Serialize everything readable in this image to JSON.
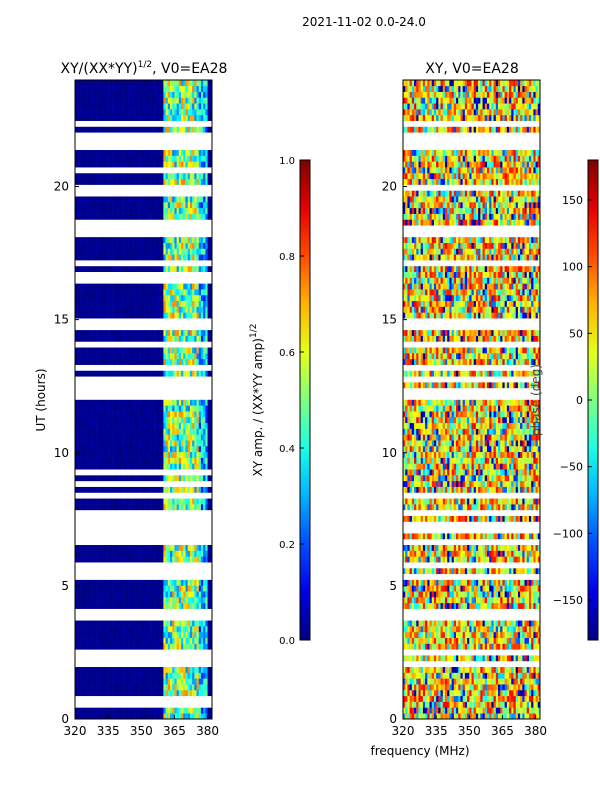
{
  "figure": {
    "suptitle": "2021-11-02 0.0-24.0"
  },
  "chart_data": [
    {
      "type": "heatmap",
      "title": "XY/(XX*YY)",
      "title_sup": "1/2",
      "title_suffix": ", V0=EA28",
      "xlabel": "",
      "ylabel": "UT (hours)",
      "xlim": [
        320,
        382
      ],
      "ylim": [
        0,
        24
      ],
      "xticks": [
        320,
        335,
        350,
        365,
        380
      ],
      "yticks": [
        0,
        5,
        10,
        15,
        20
      ],
      "colorbar": {
        "label": "XY amp. / (XX*YY amp)",
        "label_sup": "1/2",
        "range": [
          0.0,
          1.0
        ],
        "ticks": [
          "0.0",
          "0.2",
          "0.4",
          "0.6",
          "0.8",
          "1.0"
        ],
        "colormap": "jet"
      },
      "description_values": {
        "background_amplitude": 0.0,
        "band_range_mhz": [
          360,
          376
        ],
        "band_amplitude_range": [
          0.25,
          0.75
        ]
      }
    },
    {
      "type": "heatmap",
      "title": "XY, V0=EA28",
      "xlabel": "frequency (MHz)",
      "ylabel": "",
      "xlim": [
        320,
        382
      ],
      "ylim": [
        0,
        24
      ],
      "xticks": [
        320,
        335,
        350,
        365,
        380
      ],
      "yticks": [
        0,
        5,
        10,
        15,
        20
      ],
      "colorbar": {
        "label": "phase (deg)",
        "range": [
          -180,
          180
        ],
        "ticks": [
          "150",
          "100",
          "50",
          "0",
          "−50",
          "−100",
          "−150"
        ],
        "colormap": "jet"
      },
      "description_values": {
        "dominant_phase_range_deg": [
          0,
          140
        ]
      }
    }
  ],
  "colors": {
    "jet_low": "#00007f",
    "jet_high": "#7f0000",
    "gap": "#ffffff"
  }
}
